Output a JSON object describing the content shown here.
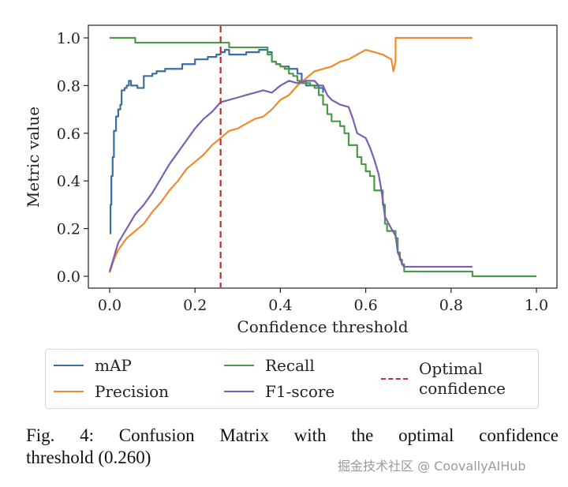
{
  "chart_data": {
    "type": "line",
    "title": "",
    "xlabel": "Confidence threshold",
    "ylabel": "Metric value",
    "xlim": [
      -0.05,
      1.05
    ],
    "ylim": [
      -0.05,
      1.05
    ],
    "xticks": [
      "0.0",
      "0.2",
      "0.4",
      "0.6",
      "0.8",
      "1.0"
    ],
    "yticks": [
      "0.0",
      "0.2",
      "0.4",
      "0.6",
      "0.8",
      "1.0"
    ],
    "grid": false,
    "legend_position": "below",
    "series": [
      {
        "name": "mAP",
        "color": "#3b6e9e",
        "step": true,
        "points": [
          [
            0.0,
            0.18
          ],
          [
            0.002,
            0.3
          ],
          [
            0.004,
            0.42
          ],
          [
            0.007,
            0.5
          ],
          [
            0.01,
            0.61
          ],
          [
            0.015,
            0.67
          ],
          [
            0.02,
            0.7
          ],
          [
            0.025,
            0.72
          ],
          [
            0.028,
            0.78
          ],
          [
            0.035,
            0.79
          ],
          [
            0.04,
            0.8
          ],
          [
            0.045,
            0.82
          ],
          [
            0.05,
            0.8
          ],
          [
            0.065,
            0.79
          ],
          [
            0.08,
            0.84
          ],
          [
            0.09,
            0.84
          ],
          [
            0.1,
            0.85
          ],
          [
            0.11,
            0.86
          ],
          [
            0.13,
            0.87
          ],
          [
            0.16,
            0.87
          ],
          [
            0.17,
            0.89
          ],
          [
            0.19,
            0.89
          ],
          [
            0.2,
            0.91
          ],
          [
            0.23,
            0.92
          ],
          [
            0.25,
            0.93
          ],
          [
            0.26,
            0.94
          ],
          [
            0.27,
            0.95
          ],
          [
            0.28,
            0.93
          ],
          [
            0.3,
            0.93
          ],
          [
            0.32,
            0.94
          ],
          [
            0.35,
            0.95
          ],
          [
            0.37,
            0.94
          ],
          [
            0.38,
            0.9
          ],
          [
            0.39,
            0.89
          ],
          [
            0.4,
            0.88
          ],
          [
            0.42,
            0.87
          ],
          [
            0.44,
            0.85
          ],
          [
            0.45,
            0.82
          ],
          [
            0.46,
            0.8
          ],
          [
            0.49,
            0.79
          ],
          [
            0.5,
            0.77
          ]
        ]
      },
      {
        "name": "Recall",
        "color": "#4c9a48",
        "step": true,
        "points": [
          [
            0.0,
            1.0
          ],
          [
            0.055,
            1.0
          ],
          [
            0.06,
            0.98
          ],
          [
            0.26,
            0.98
          ],
          [
            0.28,
            0.96
          ],
          [
            0.36,
            0.96
          ],
          [
            0.37,
            0.93
          ],
          [
            0.38,
            0.9
          ],
          [
            0.39,
            0.89
          ],
          [
            0.4,
            0.88
          ],
          [
            0.41,
            0.87
          ],
          [
            0.42,
            0.85
          ],
          [
            0.43,
            0.84
          ],
          [
            0.44,
            0.82
          ],
          [
            0.45,
            0.81
          ],
          [
            0.47,
            0.8
          ],
          [
            0.48,
            0.79
          ],
          [
            0.49,
            0.76
          ],
          [
            0.5,
            0.72
          ],
          [
            0.51,
            0.68
          ],
          [
            0.52,
            0.65
          ],
          [
            0.54,
            0.63
          ],
          [
            0.55,
            0.6
          ],
          [
            0.56,
            0.55
          ],
          [
            0.58,
            0.5
          ],
          [
            0.59,
            0.47
          ],
          [
            0.6,
            0.44
          ],
          [
            0.61,
            0.42
          ],
          [
            0.62,
            0.36
          ],
          [
            0.64,
            0.3
          ],
          [
            0.645,
            0.22
          ],
          [
            0.65,
            0.19
          ],
          [
            0.67,
            0.16
          ],
          [
            0.675,
            0.1
          ],
          [
            0.68,
            0.07
          ],
          [
            0.685,
            0.05
          ],
          [
            0.69,
            0.02
          ],
          [
            0.85,
            0.02
          ],
          [
            0.85,
            0.0
          ],
          [
            1.0,
            0.0
          ]
        ]
      },
      {
        "name": "Precision",
        "color": "#ef8a2e",
        "step": false,
        "points": [
          [
            0.0,
            0.015
          ],
          [
            0.01,
            0.07
          ],
          [
            0.02,
            0.11
          ],
          [
            0.04,
            0.16
          ],
          [
            0.06,
            0.19
          ],
          [
            0.08,
            0.22
          ],
          [
            0.1,
            0.27
          ],
          [
            0.12,
            0.31
          ],
          [
            0.14,
            0.36
          ],
          [
            0.16,
            0.4
          ],
          [
            0.18,
            0.45
          ],
          [
            0.2,
            0.48
          ],
          [
            0.22,
            0.51
          ],
          [
            0.24,
            0.55
          ],
          [
            0.26,
            0.58
          ],
          [
            0.28,
            0.61
          ],
          [
            0.3,
            0.62
          ],
          [
            0.32,
            0.64
          ],
          [
            0.34,
            0.66
          ],
          [
            0.36,
            0.67
          ],
          [
            0.38,
            0.7
          ],
          [
            0.4,
            0.74
          ],
          [
            0.42,
            0.76
          ],
          [
            0.44,
            0.8
          ],
          [
            0.46,
            0.83
          ],
          [
            0.48,
            0.86
          ],
          [
            0.5,
            0.87
          ],
          [
            0.52,
            0.88
          ],
          [
            0.54,
            0.9
          ],
          [
            0.56,
            0.91
          ],
          [
            0.58,
            0.93
          ],
          [
            0.6,
            0.95
          ],
          [
            0.62,
            0.94
          ],
          [
            0.64,
            0.93
          ],
          [
            0.66,
            0.91
          ],
          [
            0.665,
            0.86
          ],
          [
            0.67,
            0.9
          ],
          [
            0.67,
            1.0
          ],
          [
            0.85,
            1.0
          ]
        ]
      },
      {
        "name": "F1-score",
        "color": "#7b5fb4",
        "step": false,
        "points": [
          [
            0.0,
            0.02
          ],
          [
            0.01,
            0.08
          ],
          [
            0.02,
            0.14
          ],
          [
            0.04,
            0.2
          ],
          [
            0.06,
            0.26
          ],
          [
            0.08,
            0.3
          ],
          [
            0.1,
            0.35
          ],
          [
            0.12,
            0.41
          ],
          [
            0.14,
            0.47
          ],
          [
            0.16,
            0.52
          ],
          [
            0.18,
            0.57
          ],
          [
            0.2,
            0.62
          ],
          [
            0.22,
            0.66
          ],
          [
            0.24,
            0.69
          ],
          [
            0.26,
            0.73
          ],
          [
            0.28,
            0.74
          ],
          [
            0.3,
            0.75
          ],
          [
            0.32,
            0.76
          ],
          [
            0.34,
            0.77
          ],
          [
            0.36,
            0.78
          ],
          [
            0.38,
            0.77
          ],
          [
            0.4,
            0.8
          ],
          [
            0.42,
            0.82
          ],
          [
            0.44,
            0.81
          ],
          [
            0.46,
            0.82
          ],
          [
            0.48,
            0.82
          ],
          [
            0.49,
            0.8
          ],
          [
            0.5,
            0.8
          ],
          [
            0.51,
            0.76
          ],
          [
            0.52,
            0.74
          ],
          [
            0.54,
            0.72
          ],
          [
            0.56,
            0.71
          ],
          [
            0.57,
            0.66
          ],
          [
            0.58,
            0.6
          ],
          [
            0.6,
            0.58
          ],
          [
            0.61,
            0.54
          ],
          [
            0.62,
            0.49
          ],
          [
            0.63,
            0.43
          ],
          [
            0.635,
            0.38
          ],
          [
            0.64,
            0.32
          ],
          [
            0.645,
            0.25
          ],
          [
            0.66,
            0.2
          ],
          [
            0.67,
            0.17
          ],
          [
            0.675,
            0.1
          ],
          [
            0.68,
            0.08
          ],
          [
            0.685,
            0.05
          ],
          [
            0.69,
            0.04
          ],
          [
            0.85,
            0.04
          ]
        ]
      }
    ],
    "vline": {
      "name": "Optimal confidence",
      "x": 0.26,
      "color": "#b73236",
      "style": "dashed"
    }
  },
  "legend": {
    "items": [
      {
        "label": "mAP",
        "color": "#3b6e9e",
        "style": "solid"
      },
      {
        "label": "Precision",
        "color": "#ef8a2e",
        "style": "solid"
      },
      {
        "label": "Recall",
        "color": "#4c9a48",
        "style": "solid"
      },
      {
        "label": "F1-score",
        "color": "#7b5fb4",
        "style": "solid"
      },
      {
        "label_line1": "Optimal",
        "label_line2": "confidence",
        "color": "#b73236",
        "style": "dashed"
      }
    ]
  },
  "caption": {
    "line1": "Fig. 4: Confusion Matrix with the optimal confidence",
    "line2": "threshold (0.260)"
  },
  "watermark": "掘金技术社区 @ CoovallyAIHub"
}
